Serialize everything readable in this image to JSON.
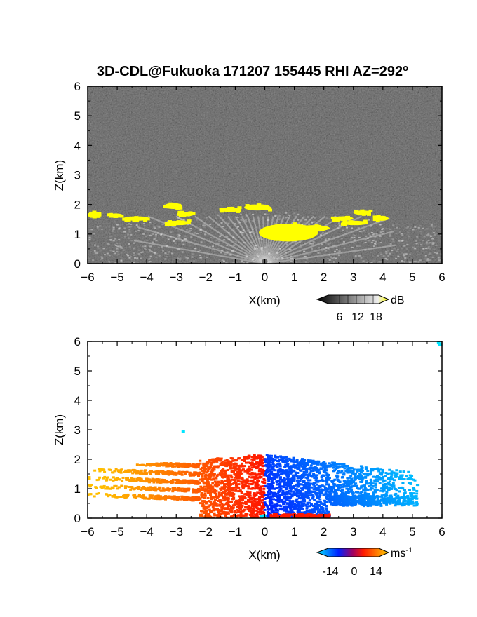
{
  "title": {
    "main": "3D-CDL@Fukuoka 171207 155445 RHI AZ=292",
    "degree_symbol": "o"
  },
  "colors": {
    "reflectivity_background": "#1c1c1c",
    "highlight": "#ffff00",
    "velocity_negative_dark": "#0000ff",
    "velocity_negative_light": "#00e5ff",
    "velocity_positive_dark": "#ff1a00",
    "velocity_positive_light": "#ffc000"
  },
  "chart_data": [
    {
      "type": "heatmap",
      "variable": "reflectivity",
      "title": "3D-CDL@Fukuoka 171207 155445 RHI AZ=292°",
      "xlabel": "X(km)",
      "ylabel": "Z(km)",
      "xlim": [
        -6,
        6
      ],
      "ylim": [
        0,
        6
      ],
      "xticks": [
        -6,
        -5,
        -4,
        -3,
        -2,
        -1,
        0,
        1,
        2,
        3,
        4,
        5,
        6
      ],
      "yticks": [
        0,
        1,
        2,
        3,
        4,
        5,
        6
      ],
      "colorbar": {
        "unit": "dB",
        "ticks": [
          6,
          12,
          18
        ],
        "colormap": "grayscale, yellow above 18 dB"
      },
      "yellow_regions_km": [
        {
          "x": [
            -6.0,
            -5.6
          ],
          "z": [
            1.55,
            1.75
          ]
        },
        {
          "x": [
            -5.3,
            -4.8
          ],
          "z": [
            1.55,
            1.7
          ]
        },
        {
          "x": [
            -4.8,
            -3.9
          ],
          "z": [
            1.45,
            1.6
          ]
        },
        {
          "x": [
            -3.4,
            -2.8
          ],
          "z": [
            1.85,
            2.05
          ]
        },
        {
          "x": [
            -2.9,
            -2.4
          ],
          "z": [
            1.6,
            1.75
          ]
        },
        {
          "x": [
            -3.4,
            -2.5
          ],
          "z": [
            1.3,
            1.45
          ]
        },
        {
          "x": [
            -1.5,
            -0.8
          ],
          "z": [
            1.75,
            1.9
          ]
        },
        {
          "x": [
            -0.7,
            0.2
          ],
          "z": [
            1.8,
            2.0
          ]
        },
        {
          "x": [
            -0.2,
            1.8
          ],
          "z": [
            0.75,
            1.35
          ]
        },
        {
          "x": [
            1.1,
            2.2
          ],
          "z": [
            1.1,
            1.3
          ]
        },
        {
          "x": [
            2.3,
            3.0
          ],
          "z": [
            1.45,
            1.6
          ]
        },
        {
          "x": [
            2.6,
            3.5
          ],
          "z": [
            1.3,
            1.45
          ]
        },
        {
          "x": [
            3.0,
            3.6
          ],
          "z": [
            1.65,
            1.8
          ]
        },
        {
          "x": [
            3.7,
            4.2
          ],
          "z": [
            1.45,
            1.6
          ]
        }
      ]
    },
    {
      "type": "heatmap",
      "variable": "radial velocity",
      "xlabel": "X(km)",
      "ylabel": "Z(km)",
      "xlim": [
        -6,
        6
      ],
      "ylim": [
        0,
        6
      ],
      "xticks": [
        -6,
        -5,
        -4,
        -3,
        -2,
        -1,
        0,
        1,
        2,
        3,
        4,
        5,
        6
      ],
      "yticks": [
        0,
        1,
        2,
        3,
        4,
        5,
        6
      ],
      "colorbar": {
        "unit": "ms",
        "unit_exponent": "-1",
        "ticks": [
          -14,
          0,
          14
        ],
        "colormap": "cyan-blue (negative) to red-orange (positive)"
      },
      "positive_region_km": {
        "x": [
          -6,
          0
        ],
        "z": [
          0,
          2.2
        ]
      },
      "negative_region_km": {
        "x": [
          0,
          6
        ],
        "z": [
          0,
          2.2
        ]
      }
    }
  ]
}
